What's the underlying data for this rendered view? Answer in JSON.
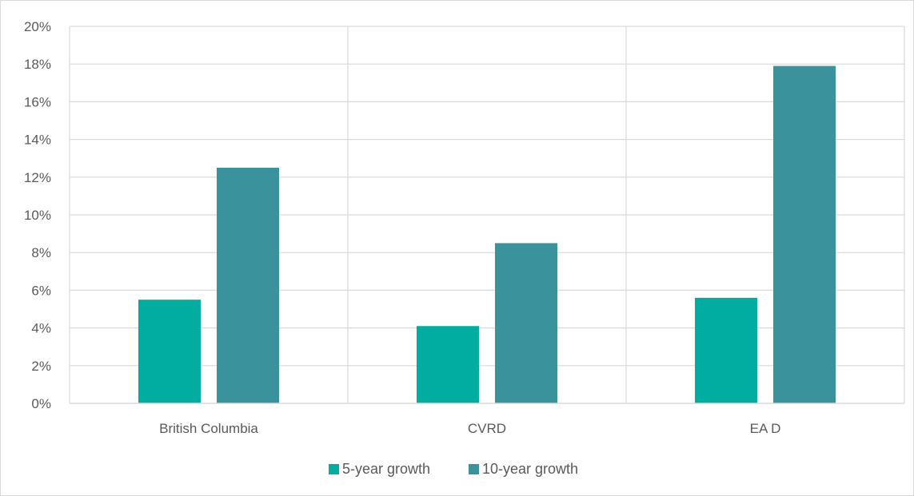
{
  "chart_data": {
    "type": "bar",
    "title": "",
    "categories": [
      "British Columbia",
      "CVRD",
      "EA D"
    ],
    "series": [
      {
        "name": "5-year growth",
        "values": [
          5.5,
          4.1,
          5.6
        ],
        "color": "#00ADA0"
      },
      {
        "name": "10-year growth",
        "values": [
          12.5,
          8.5,
          17.9
        ],
        "color": "#3A939C"
      }
    ],
    "yticks": [
      "0%",
      "2%",
      "4%",
      "6%",
      "8%",
      "10%",
      "12%",
      "14%",
      "16%",
      "18%",
      "20%"
    ],
    "ylim": [
      0,
      20
    ],
    "xlabel": "",
    "ylabel": "",
    "grid": true,
    "legend": "bottom"
  }
}
